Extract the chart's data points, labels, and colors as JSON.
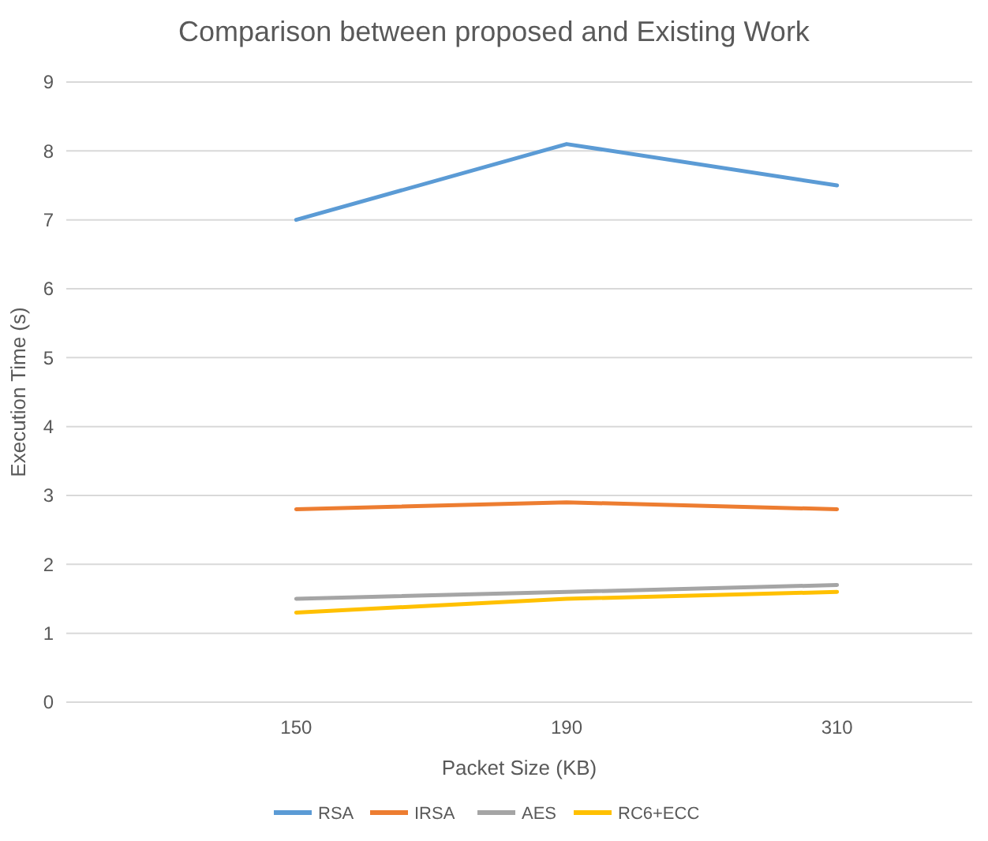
{
  "chart_data": {
    "type": "line",
    "title": "Comparison between proposed and Existing Work",
    "xlabel": "Packet Size (KB)",
    "ylabel": "Execution Time (s)",
    "categories": [
      "150",
      "190",
      "310"
    ],
    "series": [
      {
        "name": "RSA",
        "color": "#5b9bd5",
        "values": [
          7,
          8.1,
          7.5
        ]
      },
      {
        "name": "IRSA",
        "color": "#ed7d31",
        "values": [
          2.8,
          2.9,
          2.8
        ]
      },
      {
        "name": "AES",
        "color": "#a5a5a5",
        "values": [
          1.5,
          1.6,
          1.7
        ]
      },
      {
        "name": "RC6+ECC",
        "color": "#ffc000",
        "values": [
          1.3,
          1.5,
          1.6
        ]
      }
    ],
    "ylim": [
      0,
      9
    ],
    "yticks": [
      0,
      1,
      2,
      3,
      4,
      5,
      6,
      7,
      8,
      9
    ],
    "grid": "y",
    "legend": "bottom",
    "marker": "none",
    "line_style": "solid"
  }
}
